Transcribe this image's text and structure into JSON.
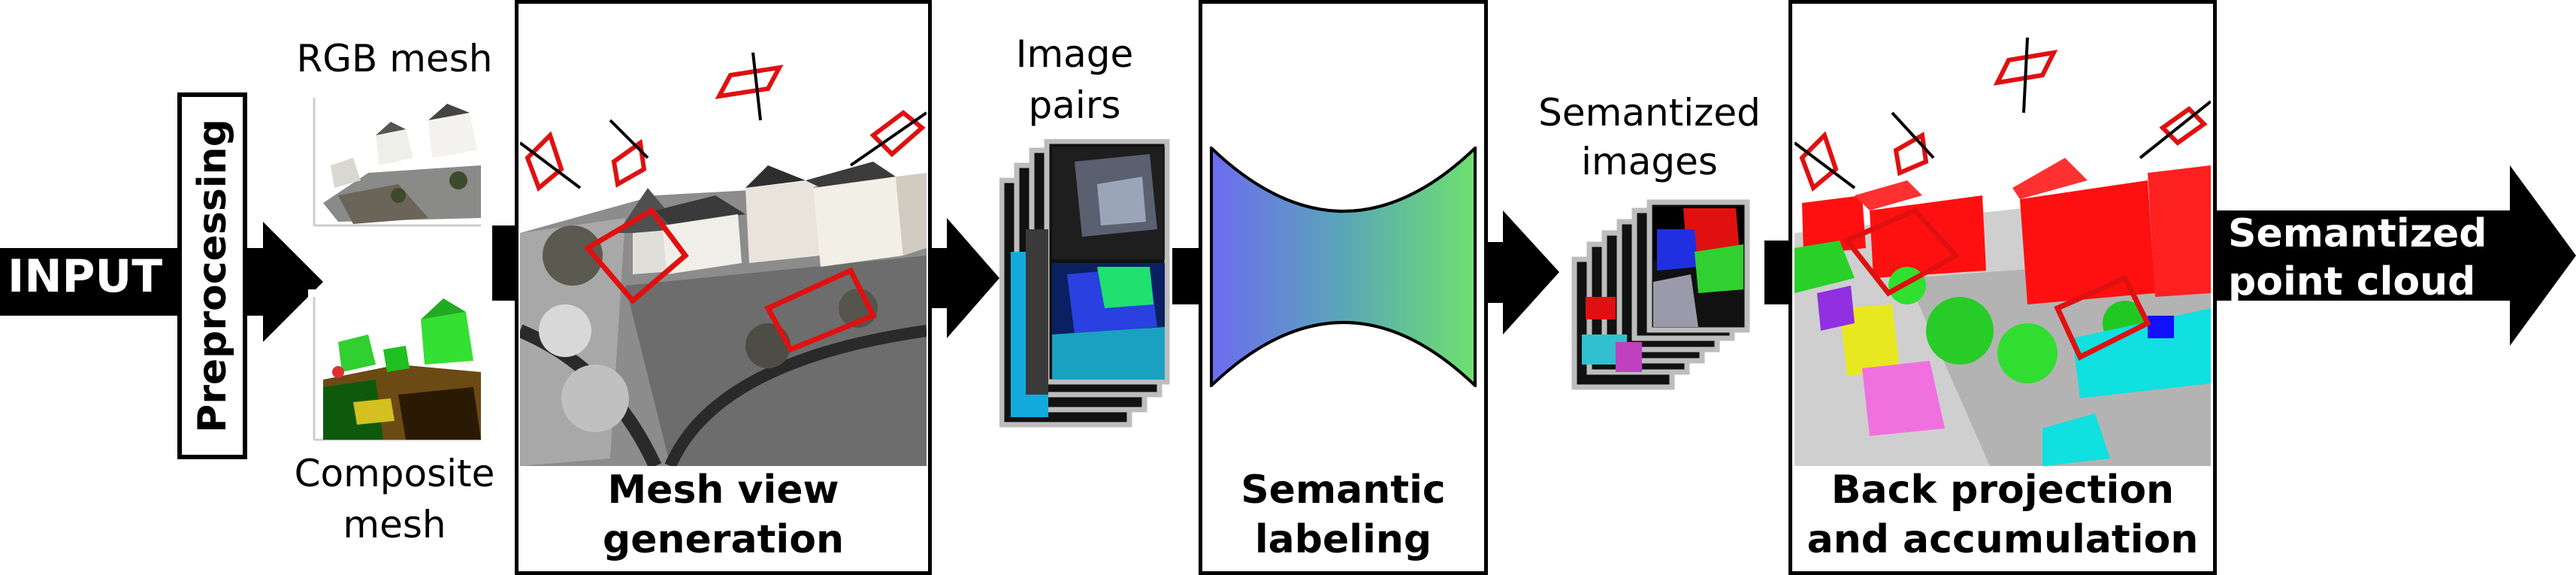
{
  "input": {
    "label": "INPUT"
  },
  "preprocessing": {
    "label": "Preprocessing"
  },
  "meshes": {
    "rgb_label": "RGB mesh",
    "composite_label_line1": "Composite",
    "composite_label_line2": "mesh"
  },
  "mesh_view": {
    "title_line1": "Mesh view",
    "title_line2": "generation"
  },
  "image_pairs": {
    "label_line1": "Image",
    "label_line2": "pairs"
  },
  "semantic_labeling": {
    "title_line1": "Semantic",
    "title_line2": "labeling"
  },
  "semantized_images": {
    "label_line1": "Semantized",
    "label_line2": "images"
  },
  "back_projection": {
    "title_line1": "Back projection",
    "title_line2": "and accumulation"
  },
  "output": {
    "label_line1": "Semantized",
    "label_line2": "point cloud"
  },
  "colors": {
    "camera": "#e01010",
    "hourglass_left": "#6c6cf0",
    "hourglass_right": "#6ee06e",
    "arrow": "#000000"
  }
}
